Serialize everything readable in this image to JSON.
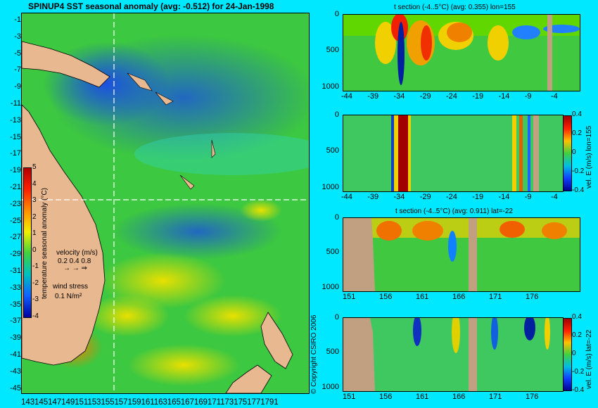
{
  "map": {
    "title": "SPINUP4 SST seasonal anomaly (avg: -0.512) for 24-Jan-1998",
    "lat_labels": [
      "-1",
      "-3",
      "-5",
      "-7",
      "-9",
      "-11",
      "-13",
      "-15",
      "-17",
      "-19",
      "-21",
      "-23",
      "-25",
      "-27",
      "-29",
      "-31",
      "-33",
      "-35",
      "-37",
      "-39",
      "-41",
      "-43",
      "-45"
    ],
    "lon_labels_text": "1431451471491511531551571591611631651671691711731751771791",
    "colorbar": {
      "label": "temperature seasonal anomaly (°C)",
      "ticks": [
        "5",
        "4",
        "3",
        "2",
        "1",
        "0",
        "-1",
        "-2",
        "-3",
        "-4"
      ]
    },
    "velocity_legend": {
      "title": "velocity (m/s)",
      "values": "0.2 0.4 0.8"
    },
    "wind_legend": {
      "title": "wind stress",
      "value": "0.1 N/m²"
    },
    "copyright": "© Copyright CSIRO 2006",
    "section_lon": 155,
    "section_lat": -22
  },
  "panels": [
    {
      "title": "t section (-4..5°C) (avg: 0.355) lon=155",
      "x_ticks": [
        "-44",
        "-39",
        "-34",
        "-29",
        "-24",
        "-19",
        "-14",
        "-9",
        "-4"
      ],
      "y_ticks": [
        "0",
        "500",
        "1000"
      ],
      "side_label": ""
    },
    {
      "title": "",
      "x_ticks": [
        "-44",
        "-39",
        "-34",
        "-29",
        "-24",
        "-19",
        "-14",
        "-9",
        "-4"
      ],
      "y_ticks": [
        "0",
        "500",
        "1000"
      ],
      "side_label": "vel. E (m/s) lon=155",
      "cb_ticks": [
        "0.4",
        "0.2",
        "0",
        "-0.2",
        "-0.4"
      ]
    },
    {
      "title": "t section (-4..5°C) (avg: 0.911) lat=-22",
      "x_ticks": [
        "151",
        "156",
        "161",
        "166",
        "171",
        "176"
      ],
      "y_ticks": [
        "0",
        "500",
        "1000"
      ],
      "side_label": ""
    },
    {
      "title": "",
      "x_ticks": [
        "151",
        "156",
        "161",
        "166",
        "171",
        "176"
      ],
      "y_ticks": [
        "0",
        "500",
        "1000"
      ],
      "side_label": "vel. E (m/s) lat=-22",
      "cb_ticks": [
        "0.4",
        "0.2",
        "0",
        "-0.2",
        "-0.4"
      ]
    }
  ],
  "colors": {
    "background": "#00e8ff",
    "land": "#e8b890",
    "section_land": "#c0a080"
  }
}
